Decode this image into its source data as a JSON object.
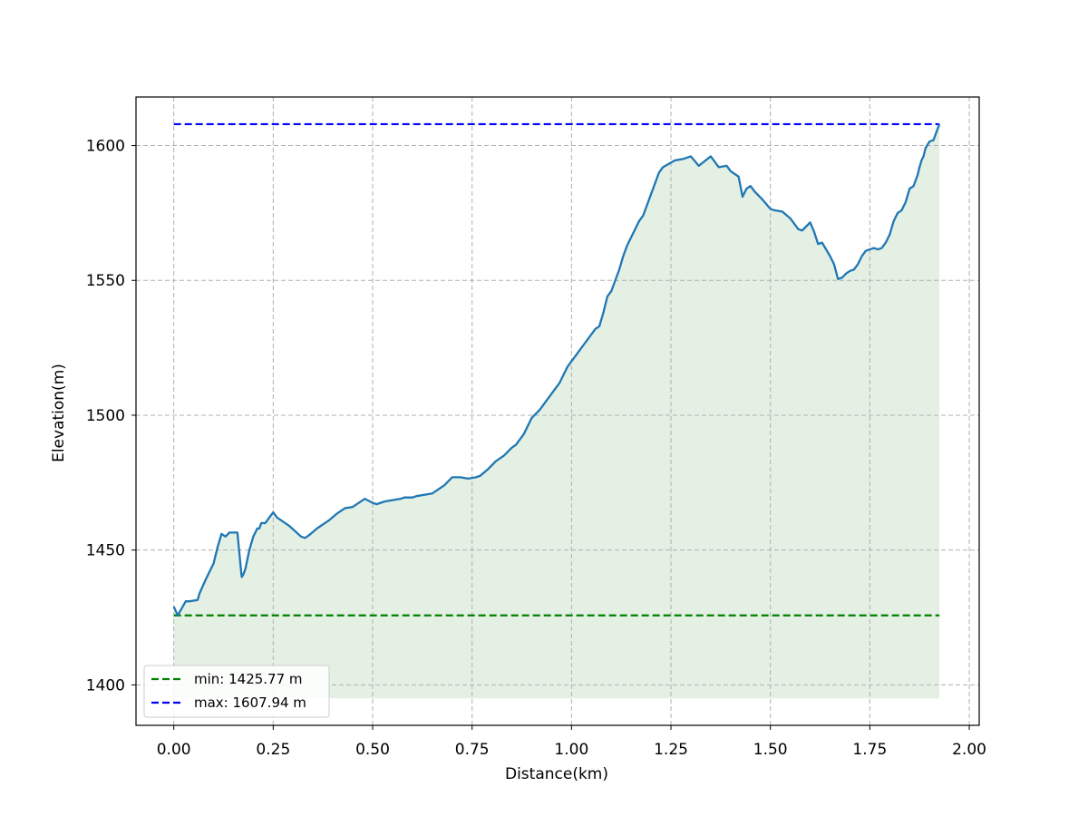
{
  "chart_data": {
    "type": "area",
    "title": "",
    "xlabel": "Distance(km)",
    "ylabel": "Elevation(m)",
    "xlim": [
      -0.095,
      2.025
    ],
    "ylim": [
      1385,
      1618
    ],
    "grid": true,
    "legend_position": "bottom-left",
    "x_ticks": [
      0.0,
      0.25,
      0.5,
      0.75,
      1.0,
      1.25,
      1.5,
      1.75,
      2.0
    ],
    "x_tick_labels": [
      "0.00",
      "0.25",
      "0.50",
      "0.75",
      "1.00",
      "1.25",
      "1.50",
      "1.75",
      "2.00"
    ],
    "y_ticks": [
      1400,
      1450,
      1500,
      1550,
      1600
    ],
    "y_tick_labels": [
      "1400",
      "1450",
      "1500",
      "1550",
      "1600"
    ],
    "fill_baseline": 1395,
    "fill_color": "#e4f0e4",
    "line_color": "#1f77b4",
    "series": [
      {
        "x": [
          0.0,
          0.01,
          0.03,
          0.04,
          0.06,
          0.065,
          0.08,
          0.1,
          0.11,
          0.12,
          0.13,
          0.14,
          0.15,
          0.16,
          0.17,
          0.171,
          0.175,
          0.18,
          0.19,
          0.2,
          0.21,
          0.215,
          0.22,
          0.23,
          0.24,
          0.25,
          0.26,
          0.29,
          0.32,
          0.33,
          0.34,
          0.36,
          0.39,
          0.41,
          0.43,
          0.45,
          0.47,
          0.48,
          0.5,
          0.51,
          0.53,
          0.55,
          0.57,
          0.58,
          0.6,
          0.61,
          0.65,
          0.68,
          0.7,
          0.72,
          0.74,
          0.76,
          0.77,
          0.79,
          0.81,
          0.83,
          0.85,
          0.86,
          0.88,
          0.9,
          0.92,
          0.94,
          0.96,
          0.97,
          0.99,
          1.0,
          1.01,
          1.03,
          1.04,
          1.05,
          1.06,
          1.07,
          1.08,
          1.09,
          1.1,
          1.12,
          1.13,
          1.14,
          1.15,
          1.16,
          1.17,
          1.18,
          1.19,
          1.2,
          1.22,
          1.23,
          1.26,
          1.28,
          1.3,
          1.32,
          1.35,
          1.37,
          1.39,
          1.4,
          1.42,
          1.43,
          1.44,
          1.45,
          1.46,
          1.48,
          1.5,
          1.51,
          1.53,
          1.55,
          1.57,
          1.58,
          1.6,
          1.61,
          1.62,
          1.63,
          1.65,
          1.66,
          1.67,
          1.68,
          1.69,
          1.7,
          1.71,
          1.72,
          1.73,
          1.74,
          1.76,
          1.77,
          1.78,
          1.79,
          1.8,
          1.81,
          1.82,
          1.83,
          1.84,
          1.85,
          1.86,
          1.87,
          1.875,
          1.88,
          1.885,
          1.89,
          1.9,
          1.91,
          1.92,
          1.925
        ],
        "y": [
          1429,
          1425.77,
          1431,
          1431,
          1431.5,
          1434,
          1439,
          1445,
          1451,
          1456,
          1455,
          1456.5,
          1456.5,
          1456.5,
          1441,
          1440,
          1441,
          1443,
          1450,
          1455,
          1458,
          1458,
          1460,
          1460,
          1462,
          1464,
          1462,
          1459,
          1455,
          1454.5,
          1455.5,
          1458,
          1461,
          1463.5,
          1465.5,
          1466,
          1468,
          1469,
          1467.5,
          1467,
          1468,
          1468.5,
          1469,
          1469.5,
          1469.5,
          1470,
          1471,
          1474,
          1477,
          1477,
          1476.5,
          1477,
          1477.5,
          1480,
          1483,
          1485,
          1488,
          1489,
          1493,
          1499,
          1502,
          1506,
          1510,
          1512,
          1518,
          1520,
          1522,
          1526,
          1528,
          1530,
          1532,
          1533,
          1538,
          1544,
          1546,
          1554,
          1559,
          1563,
          1566,
          1569,
          1572,
          1574,
          1578,
          1582,
          1590,
          1592,
          1594.5,
          1595,
          1596,
          1592.5,
          1596,
          1592,
          1592.5,
          1590.5,
          1588.5,
          1581,
          1584,
          1585,
          1583,
          1580,
          1576.5,
          1576,
          1575.5,
          1573,
          1569,
          1568.5,
          1571.5,
          1568,
          1563.5,
          1564,
          1559,
          1556,
          1550.5,
          1551,
          1552.5,
          1553.5,
          1554,
          1556,
          1559,
          1561,
          1562,
          1561.5,
          1562,
          1564,
          1567,
          1572,
          1575,
          1576,
          1579,
          1584,
          1585,
          1589,
          1592,
          1594.5,
          1596,
          1599,
          1601.5,
          1602,
          1606,
          1607.94
        ]
      }
    ],
    "hlines": [
      {
        "name": "min: 1425.77 m",
        "value": 1425.77,
        "color": "#008000",
        "x_range": [
          0.0,
          1.925
        ]
      },
      {
        "name": "max: 1607.94 m",
        "value": 1607.94,
        "color": "#0000ff",
        "x_range": [
          0.0,
          1.925
        ]
      }
    ]
  }
}
